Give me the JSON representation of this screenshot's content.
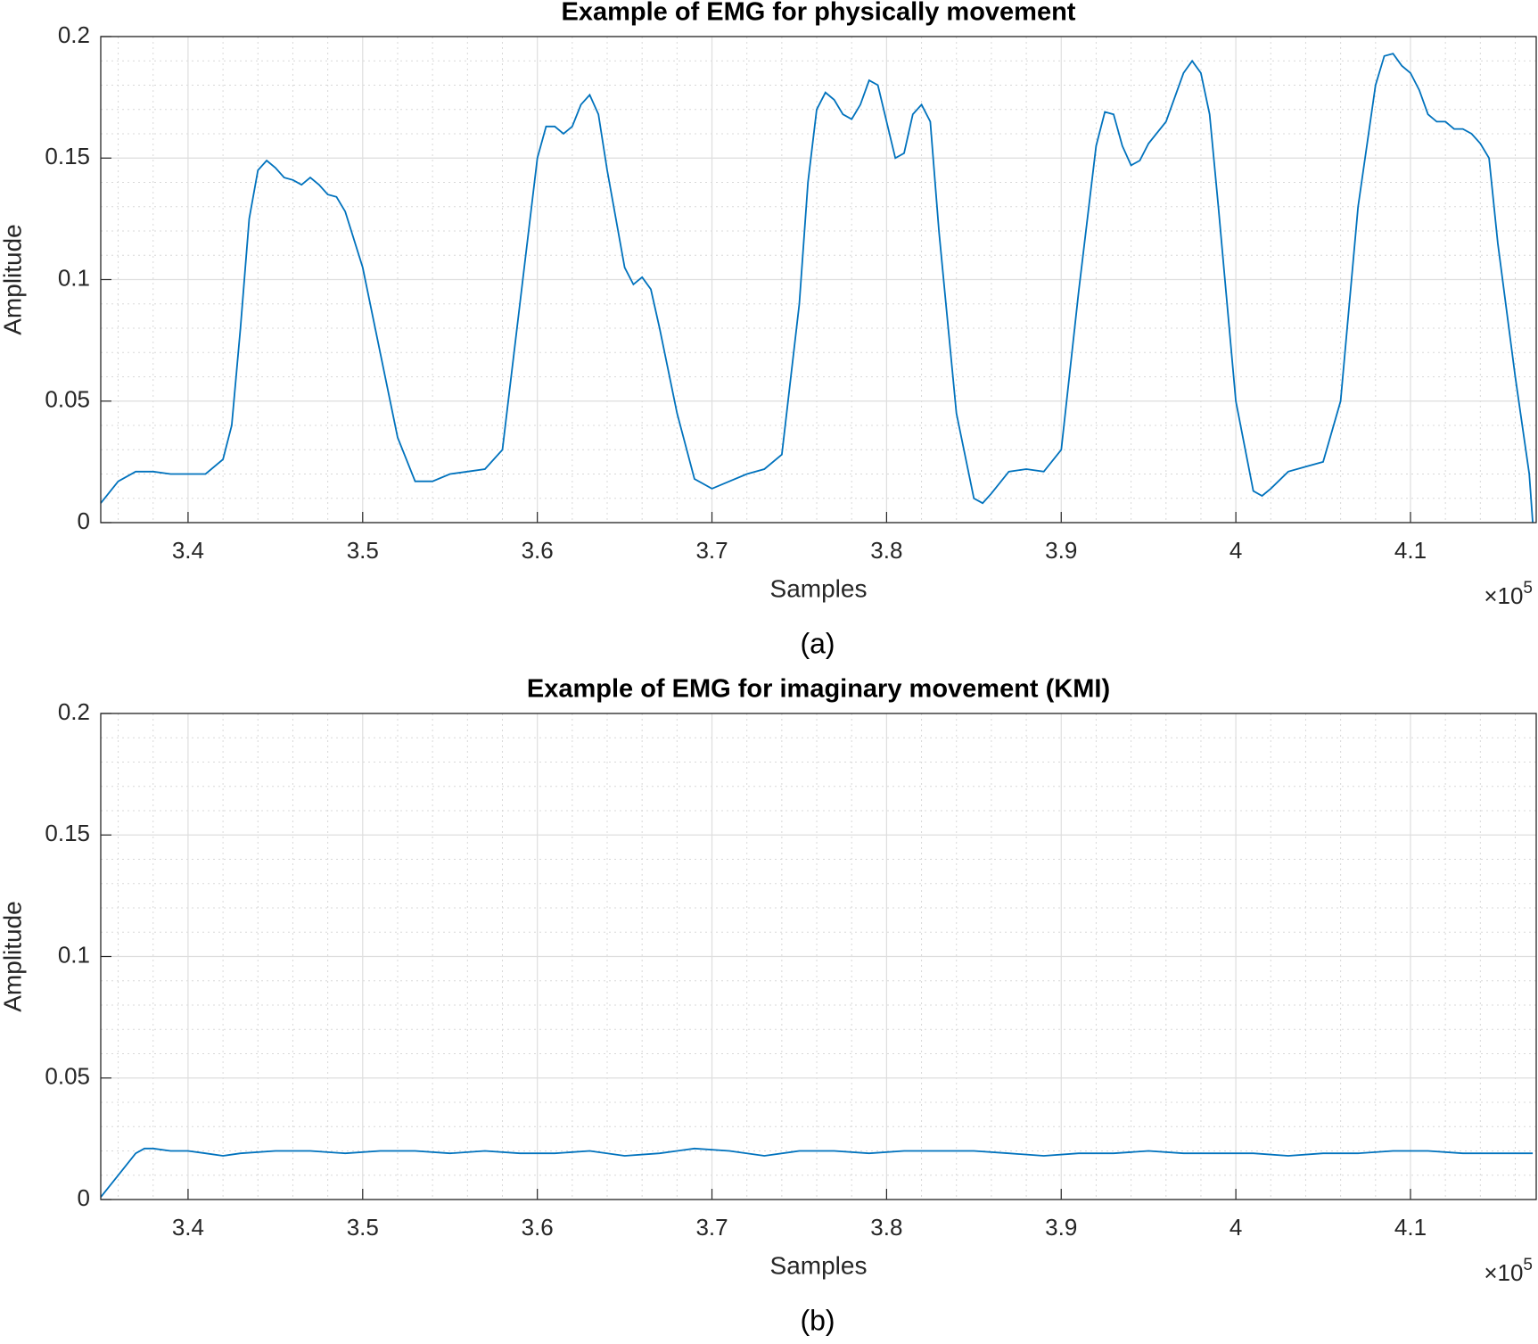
{
  "chart_data": [
    {
      "type": "line",
      "title": "Example of EMG for physically movement",
      "x_label": "Samples",
      "y_label": "Amplitude",
      "x_multiplier": "×10",
      "x_exponent": "5",
      "caption": "(a)",
      "color": "#0072bd",
      "grid": true,
      "minor_grid": true,
      "xlim": [
        335000,
        417200
      ],
      "ylim": [
        0,
        0.2
      ],
      "xticks": [
        {
          "value": 340000,
          "label": "3.4"
        },
        {
          "value": 350000,
          "label": "3.5"
        },
        {
          "value": 360000,
          "label": "3.6"
        },
        {
          "value": 370000,
          "label": "3.7"
        },
        {
          "value": 380000,
          "label": "3.8"
        },
        {
          "value": 390000,
          "label": "3.9"
        },
        {
          "value": 400000,
          "label": "4"
        },
        {
          "value": 410000,
          "label": "4.1"
        }
      ],
      "yticks": [
        0,
        0.05,
        0.1,
        0.15,
        0.2
      ],
      "x": [
        335000,
        336000,
        337000,
        338000,
        339000,
        340000,
        341000,
        342000,
        342500,
        343000,
        343500,
        344000,
        344500,
        345000,
        345500,
        346000,
        346500,
        347000,
        347500,
        348000,
        348500,
        349000,
        350000,
        351000,
        352000,
        353000,
        354000,
        355000,
        356000,
        357000,
        358000,
        359000,
        360000,
        360500,
        361000,
        361500,
        362000,
        362500,
        363000,
        363500,
        364000,
        365000,
        365500,
        366000,
        366500,
        367000,
        368000,
        369000,
        370000,
        371000,
        372000,
        373000,
        374000,
        375000,
        375500,
        376000,
        376500,
        377000,
        377500,
        378000,
        378500,
        379000,
        379500,
        380000,
        380500,
        381000,
        381500,
        382000,
        382500,
        383000,
        384000,
        385000,
        385500,
        386000,
        387000,
        388000,
        389000,
        390000,
        391000,
        392000,
        392500,
        393000,
        393500,
        394000,
        394500,
        395000,
        396000,
        397000,
        397500,
        398000,
        398500,
        399000,
        400000,
        401000,
        401500,
        402000,
        403000,
        404000,
        405000,
        406000,
        407000,
        408000,
        408500,
        409000,
        409500,
        410000,
        410500,
        411000,
        411500,
        412000,
        412500,
        413000,
        413500,
        414000,
        414500,
        415000,
        416000,
        416800,
        417000
      ],
      "values": [
        0.008,
        0.017,
        0.021,
        0.021,
        0.02,
        0.02,
        0.02,
        0.026,
        0.04,
        0.08,
        0.125,
        0.145,
        0.149,
        0.146,
        0.142,
        0.141,
        0.139,
        0.142,
        0.139,
        0.135,
        0.134,
        0.128,
        0.105,
        0.07,
        0.035,
        0.017,
        0.017,
        0.02,
        0.021,
        0.022,
        0.03,
        0.09,
        0.15,
        0.163,
        0.163,
        0.16,
        0.163,
        0.172,
        0.176,
        0.168,
        0.145,
        0.105,
        0.098,
        0.101,
        0.096,
        0.08,
        0.045,
        0.018,
        0.014,
        0.017,
        0.02,
        0.022,
        0.028,
        0.09,
        0.14,
        0.17,
        0.177,
        0.174,
        0.168,
        0.166,
        0.172,
        0.182,
        0.18,
        0.165,
        0.15,
        0.152,
        0.168,
        0.172,
        0.165,
        0.12,
        0.045,
        0.01,
        0.008,
        0.012,
        0.021,
        0.022,
        0.021,
        0.03,
        0.095,
        0.155,
        0.169,
        0.168,
        0.155,
        0.147,
        0.149,
        0.156,
        0.165,
        0.185,
        0.19,
        0.185,
        0.168,
        0.13,
        0.05,
        0.013,
        0.011,
        0.014,
        0.021,
        0.023,
        0.025,
        0.05,
        0.13,
        0.18,
        0.192,
        0.193,
        0.188,
        0.185,
        0.178,
        0.168,
        0.165,
        0.165,
        0.162,
        0.162,
        0.16,
        0.156,
        0.15,
        0.115,
        0.06,
        0.02,
        0
      ]
    },
    {
      "type": "line",
      "title": "Example of EMG for imaginary movement (KMI)",
      "x_label": "Samples",
      "y_label": "Amplitude",
      "x_multiplier": "×10",
      "x_exponent": "5",
      "caption": "(b)",
      "color": "#0072bd",
      "grid": true,
      "minor_grid": true,
      "xlim": [
        335000,
        417200
      ],
      "ylim": [
        0,
        0.2
      ],
      "xticks": [
        {
          "value": 340000,
          "label": "3.4"
        },
        {
          "value": 350000,
          "label": "3.5"
        },
        {
          "value": 360000,
          "label": "3.6"
        },
        {
          "value": 370000,
          "label": "3.7"
        },
        {
          "value": 380000,
          "label": "3.8"
        },
        {
          "value": 390000,
          "label": "3.9"
        },
        {
          "value": 400000,
          "label": "4"
        },
        {
          "value": 410000,
          "label": "4.1"
        }
      ],
      "yticks": [
        0,
        0.05,
        0.1,
        0.15,
        0.2
      ],
      "x": [
        335000,
        336000,
        337000,
        337500,
        338000,
        339000,
        340000,
        341000,
        342000,
        343000,
        345000,
        347000,
        349000,
        351000,
        353000,
        355000,
        357000,
        359000,
        361000,
        363000,
        365000,
        367000,
        369000,
        371000,
        373000,
        375000,
        377000,
        379000,
        381000,
        383000,
        385000,
        387000,
        389000,
        391000,
        393000,
        395000,
        397000,
        399000,
        401000,
        403000,
        405000,
        407000,
        409000,
        411000,
        413000,
        415000,
        417000
      ],
      "values": [
        0.001,
        0.01,
        0.019,
        0.021,
        0.021,
        0.02,
        0.02,
        0.019,
        0.018,
        0.019,
        0.02,
        0.02,
        0.019,
        0.02,
        0.02,
        0.019,
        0.02,
        0.019,
        0.019,
        0.02,
        0.018,
        0.019,
        0.021,
        0.02,
        0.018,
        0.02,
        0.02,
        0.019,
        0.02,
        0.02,
        0.02,
        0.019,
        0.018,
        0.019,
        0.019,
        0.02,
        0.019,
        0.019,
        0.019,
        0.018,
        0.019,
        0.019,
        0.02,
        0.02,
        0.019,
        0.019,
        0.019
      ]
    }
  ]
}
